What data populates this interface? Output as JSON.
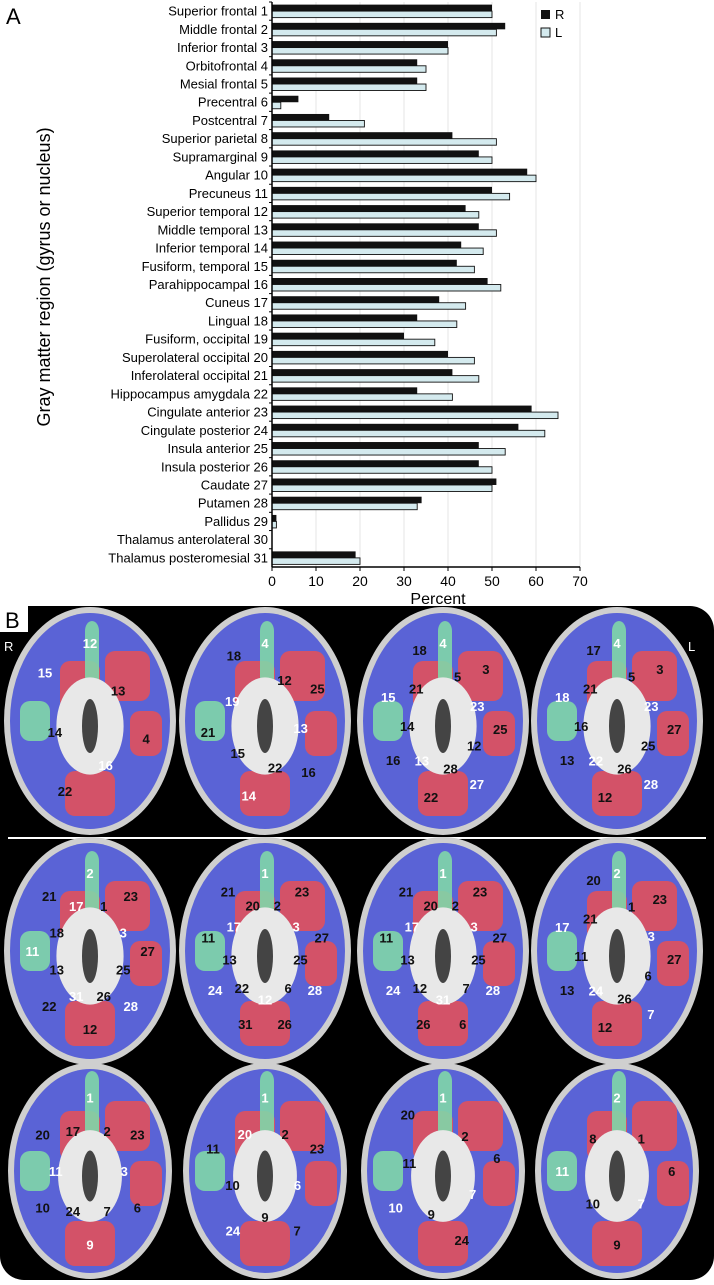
{
  "panel_a_label": "A",
  "panel_b_label": "B",
  "chart_data": {
    "type": "bar",
    "orientation": "horizontal",
    "title": "",
    "xlabel": "Percent",
    "ylabel": "Gray matter region (gyrus or nucleus)",
    "xlim": [
      0,
      70
    ],
    "xticks": [
      0,
      10,
      20,
      30,
      40,
      50,
      60,
      70
    ],
    "grid": "vertical",
    "legend": "top-right",
    "categories": [
      "Superior frontal 1",
      "Middle frontal 2",
      "Inferior frontal 3",
      "Orbitofrontal 4",
      "Mesial frontal 5",
      "Precentral 6",
      "Postcentral 7",
      "Superior parietal 8",
      "Supramarginal 9",
      "Angular 10",
      "Precuneus 11",
      "Superior temporal 12",
      "Middle temporal 13",
      "Inferior temporal 14",
      "Fusiform, temporal 15",
      "Parahippocampal 16",
      "Cuneus 17",
      "Lingual 18",
      "Fusiform, occipital 19",
      "Superolateral occipital 20",
      "Inferolateral occipital 21",
      "Hippocampus amygdala 22",
      "Cingulate anterior 23",
      "Cingulate posterior 24",
      "Insula anterior 25",
      "Insula posterior 26",
      "Caudate 27",
      "Putamen 28",
      "Pallidus 29",
      "Thalamus anterolateral 30",
      "Thalamus posteromesial 31"
    ],
    "series": [
      {
        "name": "R",
        "color": "#111111",
        "values": [
          50,
          53,
          40,
          33,
          33,
          6,
          13,
          41,
          47,
          58,
          50,
          44,
          47,
          43,
          42,
          49,
          38,
          33,
          30,
          40,
          41,
          33,
          59,
          56,
          47,
          47,
          51,
          34,
          1,
          0,
          19
        ]
      },
      {
        "name": "L",
        "color": "#d4eaee",
        "values": [
          50,
          51,
          40,
          35,
          35,
          2,
          21,
          51,
          50,
          60,
          54,
          47,
          51,
          48,
          46,
          52,
          44,
          42,
          37,
          46,
          47,
          41,
          65,
          62,
          53,
          50,
          50,
          33,
          1,
          0,
          20
        ]
      }
    ]
  },
  "brain_panel": {
    "side_left": "R",
    "side_right": "L",
    "colors": {
      "background": "#000000",
      "blue": "#5a63d6",
      "red": "#e0505c",
      "green": "#7fd6a8",
      "gray": "#9a9a9a"
    },
    "rows": [
      [
        [
          "12",
          "13",
          "4",
          "16",
          "22",
          "14",
          "15"
        ],
        [
          "4",
          "12",
          "25",
          "13",
          "16",
          "22",
          "14",
          "15",
          "21",
          "19",
          "18"
        ],
        [
          "4",
          "5",
          "3",
          "23",
          "25",
          "12",
          "27",
          "28",
          "22",
          "13",
          "16",
          "14",
          "15",
          "21",
          "18"
        ],
        [
          "4",
          "5",
          "3",
          "23",
          "27",
          "25",
          "28",
          "26",
          "12",
          "22",
          "13",
          "16",
          "18",
          "21",
          "17"
        ]
      ],
      [
        [
          "2",
          "1",
          "23",
          "3",
          "27",
          "25",
          "28",
          "26",
          "12",
          "31",
          "22",
          "13",
          "11",
          "18",
          "21",
          "17"
        ],
        [
          "1",
          "2",
          "23",
          "3",
          "27",
          "25",
          "28",
          "6",
          "26",
          "12",
          "31",
          "22",
          "24",
          "13",
          "11",
          "17",
          "21",
          "20"
        ],
        [
          "1",
          "2",
          "23",
          "3",
          "27",
          "25",
          "28",
          "7",
          "6",
          "31",
          "26",
          "12",
          "24",
          "13",
          "11",
          "17",
          "21",
          "20"
        ],
        [
          "2",
          "1",
          "23",
          "3",
          "27",
          "6",
          "7",
          "26",
          "12",
          "24",
          "13",
          "11",
          "17",
          "21",
          "20"
        ]
      ],
      [
        [
          "1",
          "2",
          "23",
          "3",
          "6",
          "7",
          "9",
          "24",
          "10",
          "11",
          "20",
          "17"
        ],
        [
          "1",
          "2",
          "23",
          "6",
          "7",
          "9",
          "24",
          "10",
          "11",
          "20"
        ],
        [
          "1",
          "2",
          "6",
          "7",
          "24",
          "9",
          "10",
          "11",
          "20"
        ],
        [
          "2",
          "1",
          "6",
          "7",
          "9",
          "10",
          "11",
          "8"
        ]
      ]
    ]
  }
}
